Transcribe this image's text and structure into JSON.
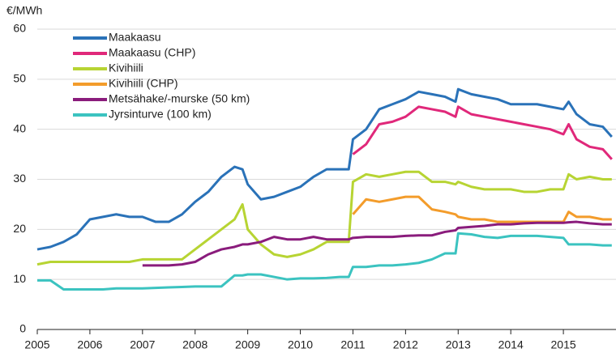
{
  "chart_data": {
    "type": "line",
    "y_label": "€/MWh",
    "x": [
      2005,
      2005.25,
      2005.5,
      2005.75,
      2006,
      2006.25,
      2006.5,
      2006.75,
      2007,
      2007.25,
      2007.5,
      2007.75,
      2008,
      2008.25,
      2008.5,
      2008.75,
      2008.9,
      2009,
      2009.25,
      2009.5,
      2009.75,
      2010,
      2010.25,
      2010.5,
      2010.75,
      2010.92,
      2011,
      2011.25,
      2011.5,
      2011.75,
      2012,
      2012.25,
      2012.5,
      2012.75,
      2012.95,
      2013,
      2013.25,
      2013.5,
      2013.75,
      2014,
      2014.25,
      2014.5,
      2014.75,
      2015,
      2015.1,
      2015.25,
      2015.5,
      2015.75,
      2015.92
    ],
    "xlim": [
      2005,
      2016
    ],
    "xticks": [
      2005,
      2006,
      2007,
      2008,
      2009,
      2010,
      2011,
      2012,
      2013,
      2014,
      2015
    ],
    "ylim": [
      0,
      60
    ],
    "yticks": [
      0,
      10,
      20,
      30,
      40,
      50,
      60
    ],
    "grid": true,
    "legend": "top-left",
    "series": [
      {
        "name": "Maakaasu",
        "color": "#2a72b8",
        "values": [
          16,
          16.5,
          17.5,
          19,
          22,
          22.5,
          23,
          22.5,
          22.5,
          21.5,
          21.5,
          23,
          25.5,
          27.5,
          30.5,
          32.5,
          32,
          29,
          26,
          26.5,
          27.5,
          28.5,
          30.5,
          32,
          32,
          32,
          38,
          40,
          44,
          45,
          46,
          47.5,
          47,
          46.5,
          45.5,
          48,
          47,
          46.5,
          46,
          45,
          45,
          45,
          44.5,
          44,
          45.5,
          43,
          41,
          40.5,
          38.5
        ]
      },
      {
        "name": "Maakaasu (CHP)",
        "color": "#e0287a",
        "values": [
          null,
          null,
          null,
          null,
          null,
          null,
          null,
          null,
          null,
          null,
          null,
          null,
          null,
          null,
          null,
          null,
          null,
          null,
          null,
          null,
          null,
          null,
          null,
          null,
          null,
          null,
          35,
          37,
          41,
          41.5,
          42.5,
          44.5,
          44,
          43.5,
          42.5,
          44.5,
          43,
          42.5,
          42,
          41.5,
          41,
          40.5,
          40,
          39,
          41,
          38,
          36.5,
          36,
          34
        ]
      },
      {
        "name": "Kivihiili",
        "color": "#b7d433",
        "values": [
          13,
          13.5,
          13.5,
          13.5,
          13.5,
          13.5,
          13.5,
          13.5,
          14,
          14,
          14,
          14,
          16,
          18,
          20,
          22,
          25,
          20,
          17,
          15,
          14.5,
          15,
          16,
          17.5,
          17.5,
          17.5,
          29.5,
          31,
          30.5,
          31,
          31.5,
          31.5,
          29.5,
          29.5,
          29,
          29.5,
          28.5,
          28,
          28,
          28,
          27.5,
          27.5,
          28,
          28,
          31,
          30,
          30.5,
          30,
          30
        ]
      },
      {
        "name": "Kivihiili (CHP)",
        "color": "#f39c2b",
        "values": [
          null,
          null,
          null,
          null,
          null,
          null,
          null,
          null,
          null,
          null,
          null,
          null,
          null,
          null,
          null,
          null,
          null,
          null,
          null,
          null,
          null,
          null,
          null,
          null,
          null,
          null,
          23,
          26,
          25.5,
          26,
          26.5,
          26.5,
          24,
          23.5,
          23,
          22.5,
          22,
          22,
          21.5,
          21.5,
          21.5,
          21.5,
          21.5,
          21.5,
          23.5,
          22.5,
          22.5,
          22,
          22
        ]
      },
      {
        "name": "Metsähake/-murske (50 km)",
        "color": "#8a1c7c",
        "values": [
          null,
          null,
          null,
          null,
          null,
          null,
          null,
          null,
          12.8,
          12.8,
          12.8,
          13,
          13.5,
          15,
          16,
          16.5,
          17,
          17,
          17.5,
          18.5,
          18,
          18,
          18.5,
          18,
          18,
          18,
          18.3,
          18.5,
          18.5,
          18.5,
          18.7,
          18.8,
          18.8,
          19.5,
          19.8,
          20.3,
          20.5,
          20.7,
          21,
          21,
          21.2,
          21.3,
          21.3,
          21.3,
          21.4,
          21.5,
          21.2,
          21,
          21
        ]
      },
      {
        "name": "Jyrsinturve (100 km)",
        "color": "#3bc3c0",
        "values": [
          9.8,
          9.8,
          8,
          8,
          8,
          8,
          8.2,
          8.2,
          8.2,
          8.3,
          8.4,
          8.5,
          8.6,
          8.6,
          8.6,
          10.8,
          10.8,
          11,
          11,
          10.5,
          10,
          10.2,
          10.2,
          10.3,
          10.5,
          10.5,
          12.5,
          12.5,
          12.8,
          12.8,
          13,
          13.3,
          14,
          15.2,
          15.2,
          19.2,
          19,
          18.5,
          18.3,
          18.7,
          18.7,
          18.7,
          18.5,
          18.3,
          17,
          17,
          17,
          16.8,
          16.8
        ]
      }
    ]
  }
}
